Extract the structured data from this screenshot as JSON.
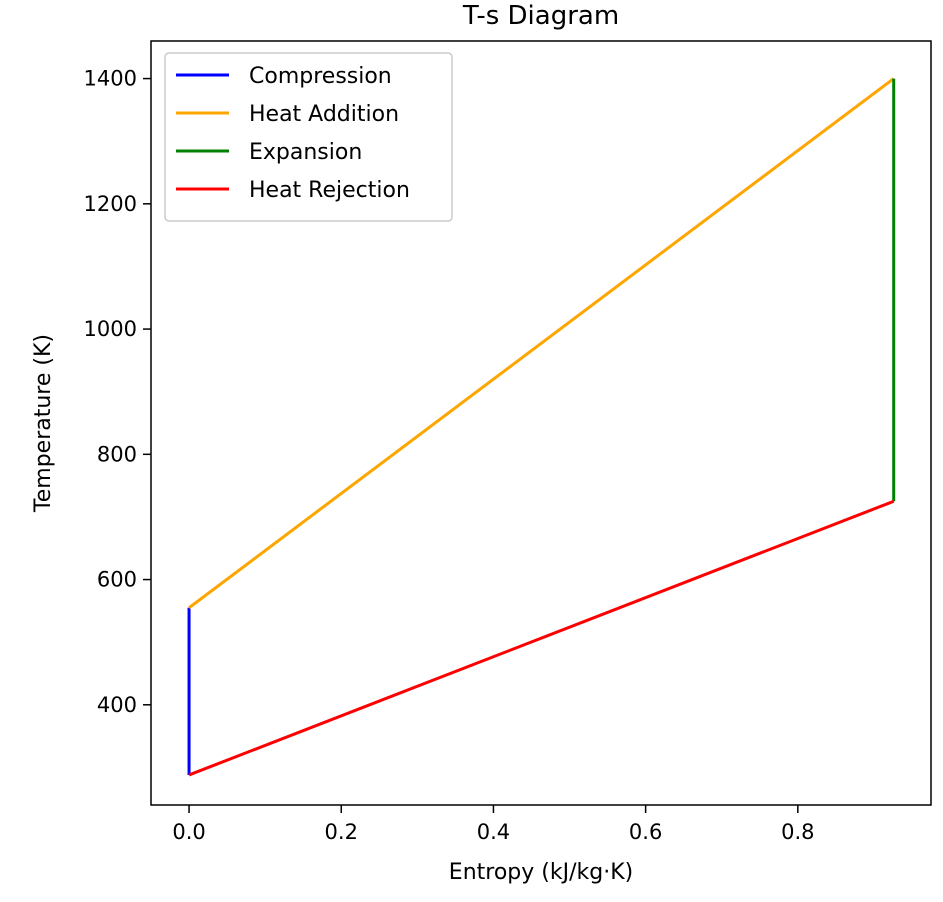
{
  "chart_data": {
    "type": "line",
    "title": "T-s Diagram",
    "xlabel": "Entropy (kJ/kg·K)",
    "ylabel": "Temperature (K)",
    "xlim": [
      -0.05,
      0.975
    ],
    "ylim": [
      240,
      1460
    ],
    "xticks": [
      0.0,
      0.2,
      0.4,
      0.6,
      0.8
    ],
    "xtick_labels": [
      "0.0",
      "0.2",
      "0.4",
      "0.6",
      "0.8"
    ],
    "yticks": [
      400,
      600,
      800,
      1000,
      1200,
      1400
    ],
    "ytick_labels": [
      "400",
      "600",
      "800",
      "1000",
      "1200",
      "1400"
    ],
    "grid": false,
    "legend_position": "top-left",
    "series": [
      {
        "name": "Compression",
        "color": "#0000ff",
        "x": [
          0.0,
          0.0
        ],
        "y": [
          288,
          555
        ]
      },
      {
        "name": "Heat Addition",
        "color": "#ffa500",
        "x": [
          0.0,
          0.926
        ],
        "y": [
          555,
          1400
        ]
      },
      {
        "name": "Expansion",
        "color": "#008000",
        "x": [
          0.926,
          0.926
        ],
        "y": [
          1400,
          725
        ]
      },
      {
        "name": "Heat Rejection",
        "color": "#ff0000",
        "x": [
          0.926,
          0.0
        ],
        "y": [
          725,
          288
        ]
      }
    ]
  }
}
